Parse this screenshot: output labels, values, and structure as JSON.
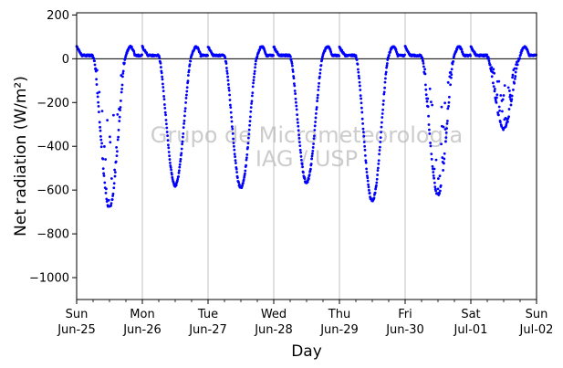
{
  "chart_data": {
    "type": "scatter",
    "xlabel": "Day",
    "ylabel": "Net radiation (W/m²)",
    "ylim": [
      -1100,
      210
    ],
    "xlim": [
      "2017-06-25",
      "2017-07-02"
    ],
    "yticks": [
      200,
      0,
      -200,
      -400,
      -600,
      -800,
      -1000
    ],
    "ytick_labels": [
      "200",
      "0",
      "−200",
      "−400",
      "−600",
      "−800",
      "−1000"
    ],
    "xticks": [
      {
        "weekday": "Sun",
        "date": "Jun-25"
      },
      {
        "weekday": "Mon",
        "date": "Jun-26"
      },
      {
        "weekday": "Tue",
        "date": "Jun-27"
      },
      {
        "weekday": "Wed",
        "date": "Jun-28"
      },
      {
        "weekday": "Thu",
        "date": "Jun-29"
      },
      {
        "weekday": "Fri",
        "date": "Jun-30"
      },
      {
        "weekday": "Sat",
        "date": "Jul-01"
      },
      {
        "weekday": "Sun",
        "date": "Jul-02"
      }
    ],
    "watermark": [
      "Grupo de Micrometeorologia",
      "IAG / USP"
    ],
    "grid": "vertical",
    "zero_line": true,
    "series_color": "#0000ff",
    "days": [
      {
        "date": "2017-06-25",
        "peak": -690,
        "noisy": true
      },
      {
        "date": "2017-06-26",
        "peak": -590,
        "noisy": false
      },
      {
        "date": "2017-06-27",
        "peak": -600,
        "noisy": false
      },
      {
        "date": "2017-06-28",
        "peak": -575,
        "noisy": false
      },
      {
        "date": "2017-06-29",
        "peak": -660,
        "noisy": false
      },
      {
        "date": "2017-06-30",
        "peak": -630,
        "noisy": true
      },
      {
        "date": "2017-07-01",
        "peak": -330,
        "noisy": true
      }
    ],
    "night_value": 15,
    "evening_bump": 55
  }
}
